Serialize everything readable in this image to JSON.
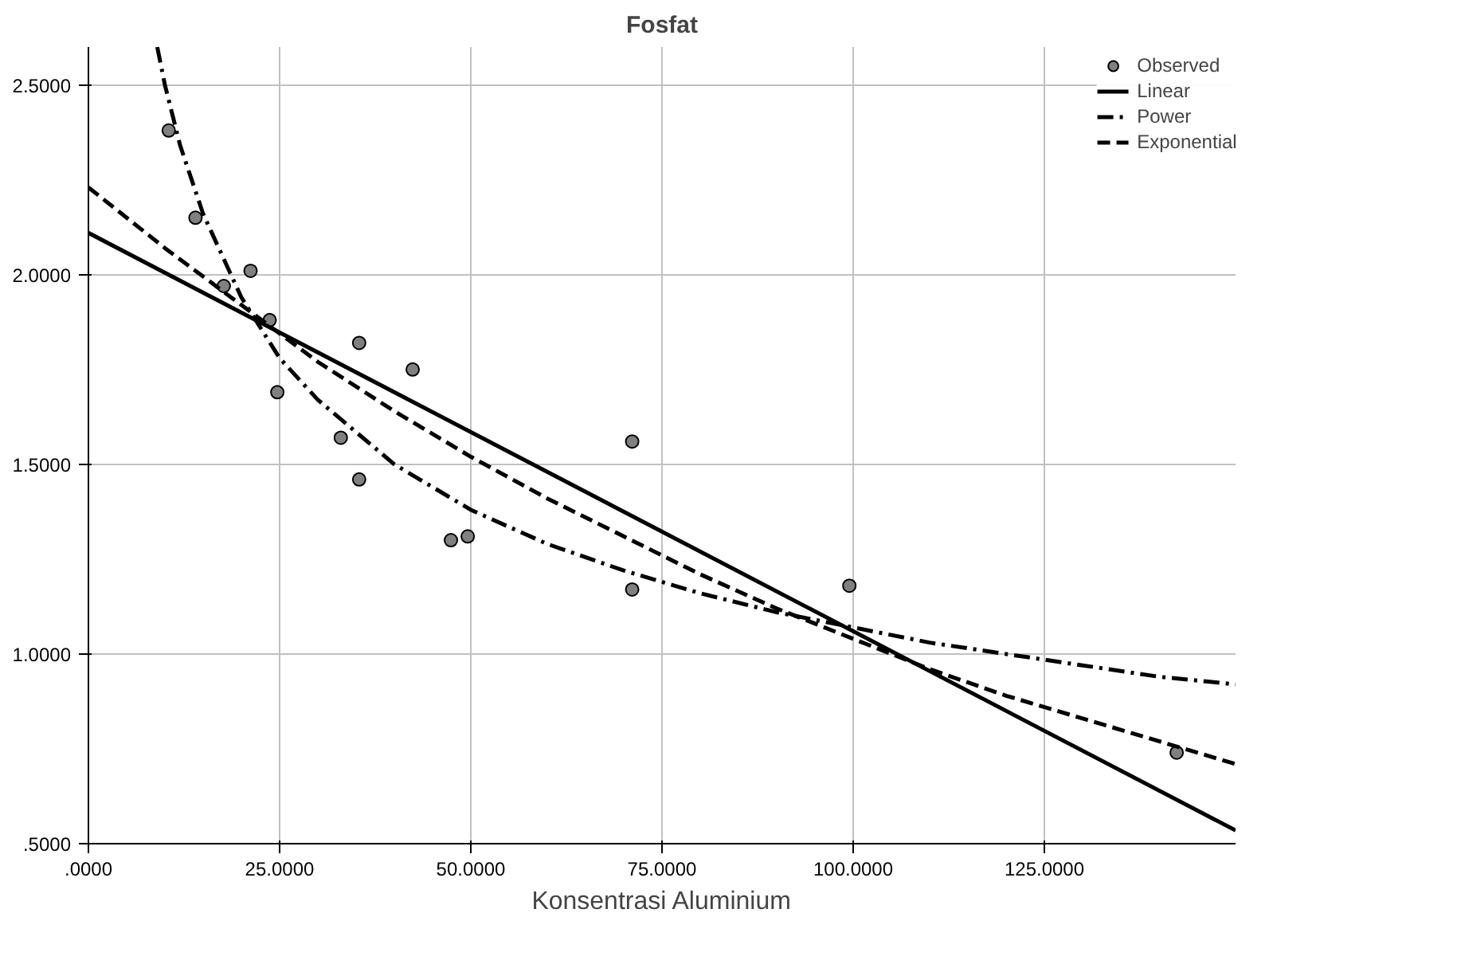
{
  "chart_data": {
    "type": "scatter",
    "title": "Fosfat",
    "xlabel": "Konsentrasi Aluminium",
    "xlim": [
      0,
      150
    ],
    "ylim": [
      0.5,
      2.6
    ],
    "xticks": [
      {
        "value": 0,
        "label": ".0000"
      },
      {
        "value": 25,
        "label": "25.0000"
      },
      {
        "value": 50,
        "label": "50.0000"
      },
      {
        "value": 75,
        "label": "75.0000"
      },
      {
        "value": 100,
        "label": "100.0000"
      },
      {
        "value": 125,
        "label": "125.0000"
      }
    ],
    "yticks": [
      {
        "value": 0.5,
        "label": ".5000"
      },
      {
        "value": 1.0,
        "label": "1.0000"
      },
      {
        "value": 1.5,
        "label": "1.5000"
      },
      {
        "value": 2.0,
        "label": "2.0000"
      },
      {
        "value": 2.5,
        "label": "2.5000"
      }
    ],
    "grid": true,
    "legend": "top right",
    "series": [
      {
        "name": "Observed",
        "type": "scatter",
        "marker": "circle",
        "color": "#808080",
        "x": [
          10.5,
          14.0,
          17.7,
          21.2,
          23.7,
          24.7,
          33.0,
          35.4,
          35.4,
          42.4,
          47.4,
          49.6,
          71.1,
          71.1,
          99.5,
          142.3
        ],
        "values": [
          2.38,
          2.15,
          1.97,
          2.01,
          1.88,
          1.69,
          1.57,
          1.82,
          1.46,
          1.75,
          1.3,
          1.31,
          1.56,
          1.17,
          1.18,
          0.74
        ]
      },
      {
        "name": "Linear",
        "type": "line",
        "line_style": "solid",
        "color": "#000000",
        "x": [
          0,
          150
        ],
        "values": [
          2.11,
          0.535
        ]
      },
      {
        "name": "Power",
        "type": "line",
        "line_style": "dashdot",
        "color": "#000000",
        "x": [
          9,
          10,
          12,
          15,
          20,
          25,
          30,
          40,
          50,
          60,
          70,
          80,
          90,
          100,
          110,
          120,
          130,
          140,
          150
        ],
        "values": [
          2.6,
          2.5,
          2.34,
          2.16,
          1.94,
          1.78,
          1.67,
          1.5,
          1.38,
          1.29,
          1.22,
          1.16,
          1.11,
          1.07,
          1.03,
          1.0,
          0.97,
          0.94,
          0.92
        ]
      },
      {
        "name": "Exponential",
        "type": "line",
        "line_style": "dashed",
        "color": "#000000",
        "x": [
          0,
          10,
          20,
          30,
          40,
          50,
          60,
          70,
          80,
          90,
          100,
          110,
          120,
          130,
          140,
          150
        ],
        "values": [
          2.23,
          2.07,
          1.92,
          1.77,
          1.64,
          1.52,
          1.41,
          1.31,
          1.21,
          1.12,
          1.04,
          0.96,
          0.89,
          0.83,
          0.77,
          0.71
        ]
      }
    ]
  }
}
